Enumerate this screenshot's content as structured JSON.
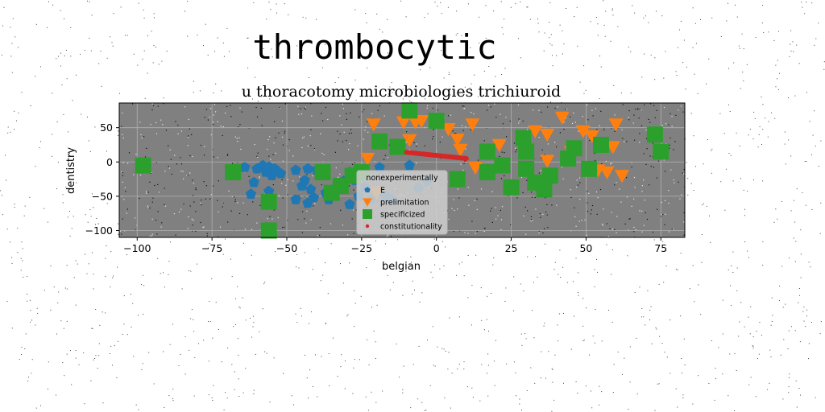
{
  "chart_data": {
    "type": "scatter",
    "title": "thrombocytic",
    "subtitle": "u thoracotomy microbiologies trichiuroid",
    "xlabel": "belgian",
    "ylabel": "dentistry",
    "xlim": [
      -106,
      83
    ],
    "ylim": [
      -110,
      86
    ],
    "xticks": [
      -100,
      -75,
      -50,
      -25,
      0,
      25,
      50,
      75
    ],
    "yticks": [
      -100,
      -50,
      0,
      50
    ],
    "xtick_labels": [
      "−100",
      "−75",
      "−50",
      "−25",
      "0",
      "25",
      "50",
      "75"
    ],
    "ytick_labels": [
      "−100",
      "−50",
      "0",
      "50"
    ],
    "grid": true,
    "plot_background": "#808080",
    "legend": {
      "title": "nonexperimentally",
      "placement": "lower-center",
      "entries": [
        "E",
        "prelimitation",
        "specificized",
        "constitutionality"
      ]
    },
    "series": [
      {
        "name": "E",
        "marker": "pentagon",
        "color": "#1f77b4",
        "points": [
          [
            -64,
            -8
          ],
          [
            -60,
            -10
          ],
          [
            -58,
            -5
          ],
          [
            -56,
            -7
          ],
          [
            -54,
            -10
          ],
          [
            -52,
            -17
          ],
          [
            -55,
            -20
          ],
          [
            -57,
            -15
          ],
          [
            -61,
            -30
          ],
          [
            -62,
            -47
          ],
          [
            -56,
            -43
          ],
          [
            -47,
            -12
          ],
          [
            -43,
            -10
          ],
          [
            -40,
            -12
          ],
          [
            -44,
            -27
          ],
          [
            -45,
            -35
          ],
          [
            -42,
            -40
          ],
          [
            -47,
            -55
          ],
          [
            -41,
            -52
          ],
          [
            -43,
            -60
          ],
          [
            -37,
            -45
          ],
          [
            -36,
            -55
          ],
          [
            -34,
            -45
          ],
          [
            -33,
            -35
          ],
          [
            -31,
            -28
          ],
          [
            -29,
            -15
          ],
          [
            -27,
            -27
          ],
          [
            -25,
            -20
          ],
          [
            -24,
            -37
          ],
          [
            -26,
            -50
          ],
          [
            -29,
            -62
          ],
          [
            -22,
            -55
          ],
          [
            -19,
            -45
          ],
          [
            -17,
            -50
          ],
          [
            -15,
            -55
          ],
          [
            -19,
            -8
          ],
          [
            -9,
            -5
          ],
          [
            -6,
            -38
          ],
          [
            -3,
            -28
          ]
        ]
      },
      {
        "name": "prelimitation",
        "marker": "triangle_down",
        "color": "#ff7f0e",
        "points": [
          [
            -21,
            55
          ],
          [
            -23,
            5
          ],
          [
            -20,
            -45
          ],
          [
            -11,
            58
          ],
          [
            -9,
            32
          ],
          [
            -7,
            58
          ],
          [
            -5,
            60
          ],
          [
            4,
            48
          ],
          [
            7,
            33
          ],
          [
            8,
            18
          ],
          [
            12,
            55
          ],
          [
            13,
            -8
          ],
          [
            21,
            25
          ],
          [
            33,
            45
          ],
          [
            37,
            40
          ],
          [
            37,
            2
          ],
          [
            42,
            65
          ],
          [
            45,
            15
          ],
          [
            49,
            45
          ],
          [
            52,
            38
          ],
          [
            54,
            -12
          ],
          [
            57,
            -15
          ],
          [
            59,
            22
          ],
          [
            60,
            55
          ],
          [
            62,
            -20
          ]
        ]
      },
      {
        "name": "specificized",
        "marker": "square",
        "color": "#2ca02c",
        "points": [
          [
            -98,
            -5
          ],
          [
            -68,
            -15
          ],
          [
            -56,
            -58
          ],
          [
            -56,
            -100
          ],
          [
            -38,
            -15
          ],
          [
            -35,
            -45
          ],
          [
            -32,
            -35
          ],
          [
            -28,
            -20
          ],
          [
            -25,
            -15
          ],
          [
            -19,
            30
          ],
          [
            -13,
            22
          ],
          [
            -9,
            75
          ],
          [
            0,
            60
          ],
          [
            7,
            -25
          ],
          [
            17,
            15
          ],
          [
            17,
            -15
          ],
          [
            22,
            -5
          ],
          [
            25,
            -37
          ],
          [
            29,
            35
          ],
          [
            30,
            15
          ],
          [
            30,
            -10
          ],
          [
            33,
            -30
          ],
          [
            36,
            -40
          ],
          [
            38,
            -20
          ],
          [
            44,
            5
          ],
          [
            46,
            20
          ],
          [
            51,
            -10
          ],
          [
            55,
            25
          ],
          [
            73,
            40
          ],
          [
            75,
            15
          ]
        ]
      },
      {
        "name": "constitutionality",
        "marker": "line",
        "color": "#d62728",
        "points": [
          [
            -10,
            14
          ],
          [
            10,
            5
          ]
        ]
      }
    ]
  }
}
